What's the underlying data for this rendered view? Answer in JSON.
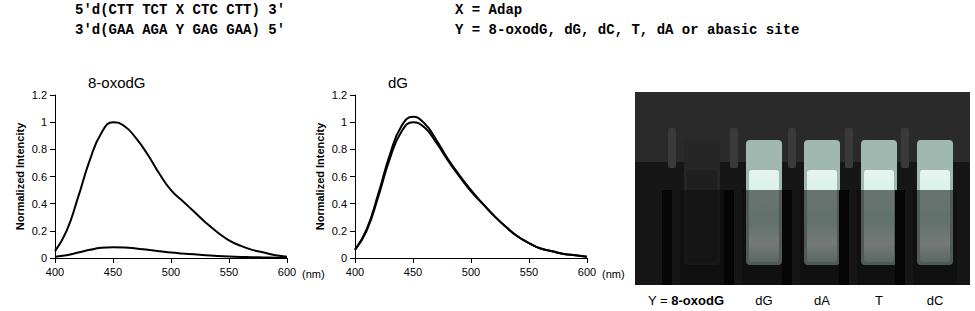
{
  "header": {
    "strand_top": "5'd(CTT TCT X CTC CTT) 3'",
    "strand_bottom": "3'd(GAA AGA Y GAG GAA) 5'",
    "x_definition": "X = Adap",
    "y_definition": "Y = 8-oxodG, dG, dC, T, dA or abasic site"
  },
  "chart_data": [
    {
      "type": "line",
      "title": "8-oxodG",
      "y_label": "Normalized Intencity",
      "x_label": "(nm)",
      "x": [
        400,
        410,
        420,
        430,
        440,
        450,
        460,
        470,
        480,
        490,
        500,
        510,
        520,
        530,
        540,
        550,
        560,
        570,
        580,
        590,
        600
      ],
      "series": [
        {
          "color": "#000000",
          "values": [
            0.05,
            0.2,
            0.45,
            0.72,
            0.92,
            1.0,
            0.97,
            0.88,
            0.76,
            0.62,
            0.5,
            0.42,
            0.34,
            0.26,
            0.19,
            0.13,
            0.09,
            0.06,
            0.04,
            0.02,
            0.01
          ]
        },
        {
          "color": "#000000",
          "values": [
            0.01,
            0.02,
            0.04,
            0.06,
            0.075,
            0.08,
            0.078,
            0.07,
            0.06,
            0.05,
            0.04,
            0.033,
            0.027,
            0.02,
            0.015,
            0.011,
            0.008,
            0.006,
            0.004,
            0.002,
            0.001
          ]
        }
      ],
      "xlim": [
        400,
        600
      ],
      "xticks": [
        400,
        450,
        500,
        550,
        600
      ],
      "ylim": [
        0,
        1.2
      ],
      "yticks": [
        0,
        0.2,
        0.4,
        0.6,
        0.8,
        1,
        1.2
      ],
      "grid": false
    },
    {
      "type": "line",
      "title": "dG",
      "y_label": "Normalized Intencity",
      "x_label": "(nm)",
      "x": [
        400,
        410,
        420,
        430,
        440,
        450,
        460,
        470,
        480,
        490,
        500,
        510,
        520,
        530,
        540,
        550,
        560,
        570,
        580,
        590,
        600
      ],
      "series": [
        {
          "color": "#000000",
          "values": [
            0.06,
            0.2,
            0.45,
            0.73,
            0.93,
            1.0,
            0.96,
            0.85,
            0.72,
            0.6,
            0.49,
            0.4,
            0.31,
            0.23,
            0.16,
            0.11,
            0.07,
            0.05,
            0.03,
            0.02,
            0.01
          ]
        },
        {
          "color": "#000000",
          "values": [
            0.06,
            0.21,
            0.47,
            0.76,
            0.97,
            1.04,
            0.99,
            0.87,
            0.73,
            0.61,
            0.5,
            0.4,
            0.31,
            0.23,
            0.16,
            0.11,
            0.07,
            0.05,
            0.03,
            0.02,
            0.01
          ]
        }
      ],
      "xlim": [
        400,
        600
      ],
      "xticks": [
        400,
        450,
        500,
        550,
        600
      ],
      "ylim": [
        0,
        1.2
      ],
      "yticks": [
        0,
        0.2,
        0.4,
        0.6,
        0.8,
        1,
        1.2
      ],
      "grid": false
    }
  ],
  "photo": {
    "label_prefix": "Y = ",
    "labels": [
      "8-oxodG",
      "dG",
      "dA",
      "T",
      "dC"
    ]
  }
}
